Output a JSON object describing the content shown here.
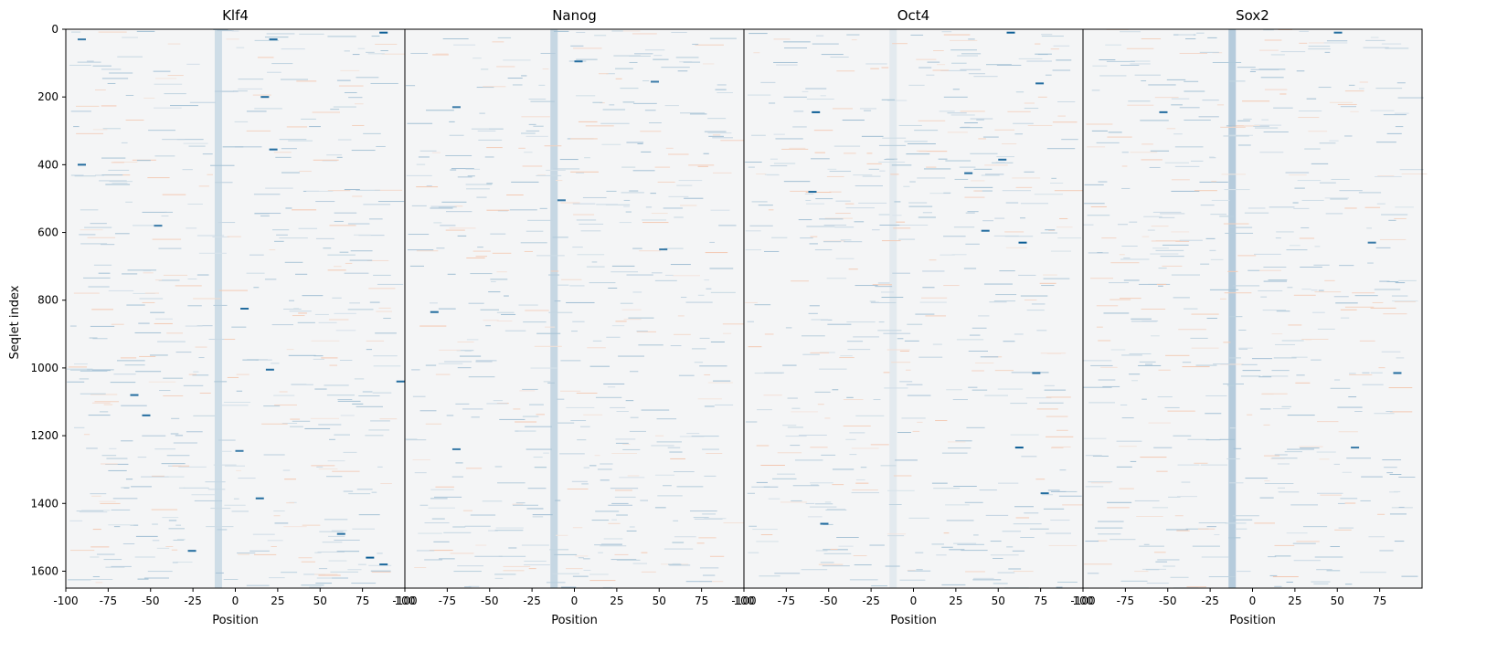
{
  "chart_data": {
    "type": "heatmap",
    "ylabel": "Seqlet index",
    "xlabel": "Position",
    "ylim": [
      1650,
      0
    ],
    "yticks": [
      0,
      200,
      400,
      600,
      800,
      1000,
      1200,
      1400,
      1600
    ],
    "xlim": [
      -100,
      100
    ],
    "xticks": [
      -100,
      -75,
      -50,
      -25,
      0,
      25,
      50,
      75
    ],
    "colormap": {
      "negative": "#0b5d95",
      "neutral": "#f4f5f6",
      "positive": "#f07a3a"
    },
    "panels": [
      {
        "title": "Klf4",
        "xticks": [
          -100,
          -75,
          -50,
          -25,
          0,
          25,
          50,
          75,
          100
        ],
        "center_stripe": {
          "position": -10,
          "value": -0.18
        },
        "strong_features": [
          {
            "row": 30,
            "position": -93,
            "value": -0.8
          },
          {
            "row": 30,
            "position": 20,
            "value": -0.9
          },
          {
            "row": 10,
            "position": 85,
            "value": -1.0
          },
          {
            "row": 200,
            "position": 15,
            "value": -0.9
          },
          {
            "row": 355,
            "position": 20,
            "value": -0.9
          },
          {
            "row": 400,
            "position": -93,
            "value": -0.9
          },
          {
            "row": 580,
            "position": -48,
            "value": -0.8
          },
          {
            "row": 825,
            "position": 3,
            "value": -0.9
          },
          {
            "row": 1005,
            "position": 18,
            "value": -0.9
          },
          {
            "row": 1040,
            "position": 95,
            "value": -0.9
          },
          {
            "row": 1080,
            "position": -62,
            "value": -0.9
          },
          {
            "row": 1140,
            "position": -55,
            "value": -0.9
          },
          {
            "row": 1245,
            "position": 0,
            "value": -0.8
          },
          {
            "row": 1385,
            "position": 12,
            "value": -0.9
          },
          {
            "row": 1490,
            "position": 60,
            "value": -0.9
          },
          {
            "row": 1540,
            "position": -28,
            "value": -0.9
          },
          {
            "row": 1560,
            "position": 77,
            "value": -1.0
          },
          {
            "row": 1580,
            "position": 85,
            "value": -0.9
          }
        ]
      },
      {
        "title": "Nanog",
        "xticks": [
          -100,
          -75,
          -50,
          -25,
          0,
          25,
          50,
          75,
          100
        ],
        "center_stripe": {
          "position": -12,
          "value": -0.22
        },
        "strong_features": [
          {
            "row": 95,
            "position": 0,
            "value": -0.9
          },
          {
            "row": 155,
            "position": 45,
            "value": -0.8
          },
          {
            "row": 230,
            "position": -72,
            "value": -0.8
          },
          {
            "row": 505,
            "position": -10,
            "value": -0.8
          },
          {
            "row": 650,
            "position": 50,
            "value": -0.8
          },
          {
            "row": 835,
            "position": -85,
            "value": -0.9
          },
          {
            "row": 1240,
            "position": -72,
            "value": -0.8
          }
        ]
      },
      {
        "title": "Oct4",
        "xticks": [
          -100,
          -75,
          -50,
          -25,
          0,
          25,
          50,
          75,
          100
        ],
        "center_stripe": {
          "position": -12,
          "value": -0.08
        },
        "strong_features": [
          {
            "row": 10,
            "position": 55,
            "value": -1.0
          },
          {
            "row": 160,
            "position": 72,
            "value": -0.9
          },
          {
            "row": 245,
            "position": -60,
            "value": -1.0
          },
          {
            "row": 385,
            "position": 50,
            "value": -0.9
          },
          {
            "row": 425,
            "position": 30,
            "value": -0.9
          },
          {
            "row": 480,
            "position": -62,
            "value": -0.9
          },
          {
            "row": 595,
            "position": 40,
            "value": -0.9
          },
          {
            "row": 630,
            "position": 62,
            "value": -1.0
          },
          {
            "row": 1015,
            "position": 70,
            "value": -0.9
          },
          {
            "row": 1235,
            "position": 60,
            "value": -1.0
          },
          {
            "row": 1370,
            "position": 75,
            "value": -0.9
          },
          {
            "row": 1460,
            "position": -55,
            "value": -0.9
          }
        ]
      },
      {
        "title": "Sox2",
        "xticks": [
          -100,
          -75,
          -50,
          -25,
          0,
          25,
          50,
          75
        ],
        "center_stripe": {
          "position": -12,
          "value": -0.3
        },
        "strong_features": [
          {
            "row": 10,
            "position": 48,
            "value": -0.9
          },
          {
            "row": 245,
            "position": -55,
            "value": -0.9
          },
          {
            "row": 630,
            "position": 68,
            "value": -0.8
          },
          {
            "row": 1015,
            "position": 83,
            "value": -0.9
          },
          {
            "row": 1235,
            "position": 58,
            "value": -0.8
          }
        ]
      }
    ]
  }
}
